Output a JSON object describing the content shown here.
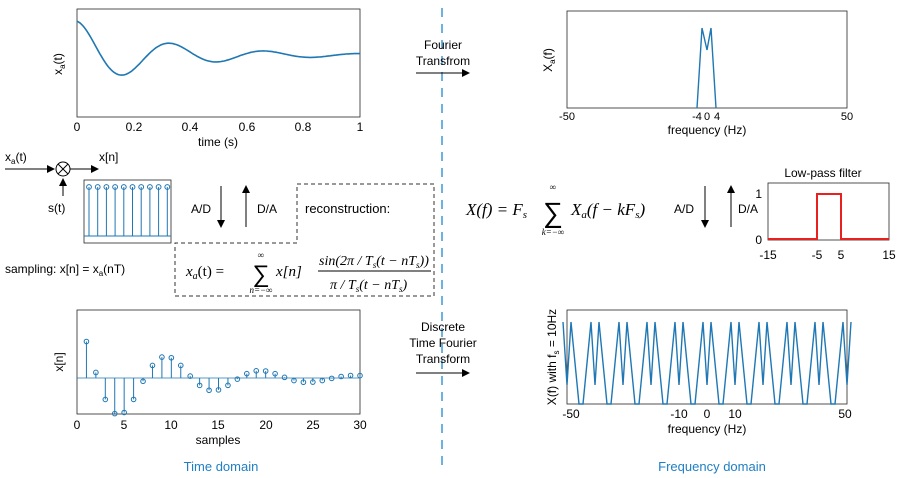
{
  "colors": {
    "signal": "#1f77b4",
    "filter": "#e8211f",
    "domain_label": "#1f7fc4",
    "divider": "#4a9fd6"
  },
  "time_plot": {
    "ylabel": "x",
    "ylabel_sub": "a",
    "ylabel_tail": "(t)",
    "xlabel": "time (s)",
    "x_ticks": [
      "0",
      "0.2",
      "0.4",
      "0.6",
      "0.8",
      "1"
    ]
  },
  "spectrum_plot": {
    "ylabel": "X",
    "ylabel_sub": "a",
    "ylabel_tail": "(f)",
    "xlabel": "frequency (Hz)",
    "x_ticks": [
      "-50",
      "-4",
      "0",
      "4",
      "50"
    ]
  },
  "arrows": {
    "fourier_line1": "Fourier",
    "fourier_line2": "Transfrom",
    "dtft_line1": "Discrete",
    "dtft_line2": "Time Fourier",
    "dtft_line3": "Transform",
    "ad_left": "A/D",
    "da_left": "D/A",
    "ad_right": "A/D",
    "da_right": "D/A"
  },
  "sampler": {
    "input": "x",
    "input_sub": "a",
    "input_tail": "(t)",
    "output": "x[n]",
    "clock": "s(t)",
    "sampling_prefix": "sampling: x[n] = x",
    "sampling_sub": "a",
    "sampling_tail": "(nT)"
  },
  "reconstruction": {
    "title": "reconstruction:",
    "lhs": "x",
    "lhs_sub": "a",
    "lhs_tail": "(t) =",
    "sum_top": "∞",
    "sum_bottom": "n=−∞",
    "term": "x[n]",
    "numerator": "sin(2π / T",
    "num_sub": "s",
    "num_tail": "(t − nT",
    "num_sub2": "s",
    "num_end": "))",
    "denominator": "π / T",
    "den_sub": "s",
    "den_tail": "(t − nT",
    "den_sub2": "s",
    "den_end": ")"
  },
  "dtft_formula": {
    "lhs": "X(f) = F",
    "lhs_sub": "s",
    "sum_top": "∞",
    "sum_bottom": "k=−∞",
    "term": "X",
    "term_sub": "a",
    "term_tail": "(f − kF",
    "term_sub2": "s",
    "term_end": ")"
  },
  "filter_plot": {
    "title": "Low-pass filter",
    "y_ticks": [
      "0",
      "1"
    ],
    "x_ticks": [
      "-15",
      "-5",
      "5",
      "15"
    ]
  },
  "stem_plot": {
    "ylabel": "x[n]",
    "xlabel": "samples",
    "x_ticks": [
      "0",
      "5",
      "10",
      "15",
      "20",
      "25",
      "30"
    ]
  },
  "periodic_plot": {
    "ylabel": "X(f) with f",
    "ylabel_sub": "s",
    "ylabel_tail": " = 10Hz",
    "xlabel": "frequency (Hz)",
    "x_ticks": [
      "-50",
      "-10",
      "0",
      "10",
      "50"
    ]
  },
  "domains": {
    "time": "Time domain",
    "frequency": "Frequency domain"
  }
}
